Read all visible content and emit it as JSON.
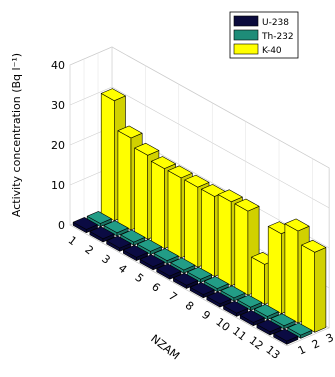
{
  "chart_data": {
    "type": "bar",
    "title": "",
    "ylabel": "Activity concentration (Bq l⁻¹)",
    "xlabel": "NZAM",
    "zlim": [
      0,
      40
    ],
    "z_ticks": [
      "0",
      "10",
      "20",
      "30",
      "40"
    ],
    "grid": true,
    "legend_position": "top-right",
    "categories": [
      "1",
      "2",
      "3",
      "4",
      "5",
      "6",
      "7",
      "8",
      "9",
      "10",
      "11",
      "12",
      "13"
    ],
    "depth_ticks": [
      "1",
      "2",
      "3"
    ],
    "series": [
      {
        "name": "U-238",
        "color": "#0a0a3c",
        "values": [
          0.8,
          0.8,
          0.8,
          0.8,
          0.8,
          0.8,
          0.8,
          0.8,
          0.8,
          0.8,
          0.8,
          0.8,
          0.8
        ]
      },
      {
        "name": "Th-232",
        "color": "#1e8c78",
        "values": [
          0.8,
          0.8,
          0.8,
          0.8,
          0.8,
          0.8,
          0.8,
          0.8,
          0.8,
          0.8,
          0.8,
          0.8,
          0.8
        ]
      },
      {
        "name": "K-40",
        "color": "#ffff00",
        "values": [
          30,
          23,
          21,
          20,
          20,
          20,
          20,
          21,
          21,
          10,
          20,
          23,
          20
        ]
      }
    ]
  }
}
